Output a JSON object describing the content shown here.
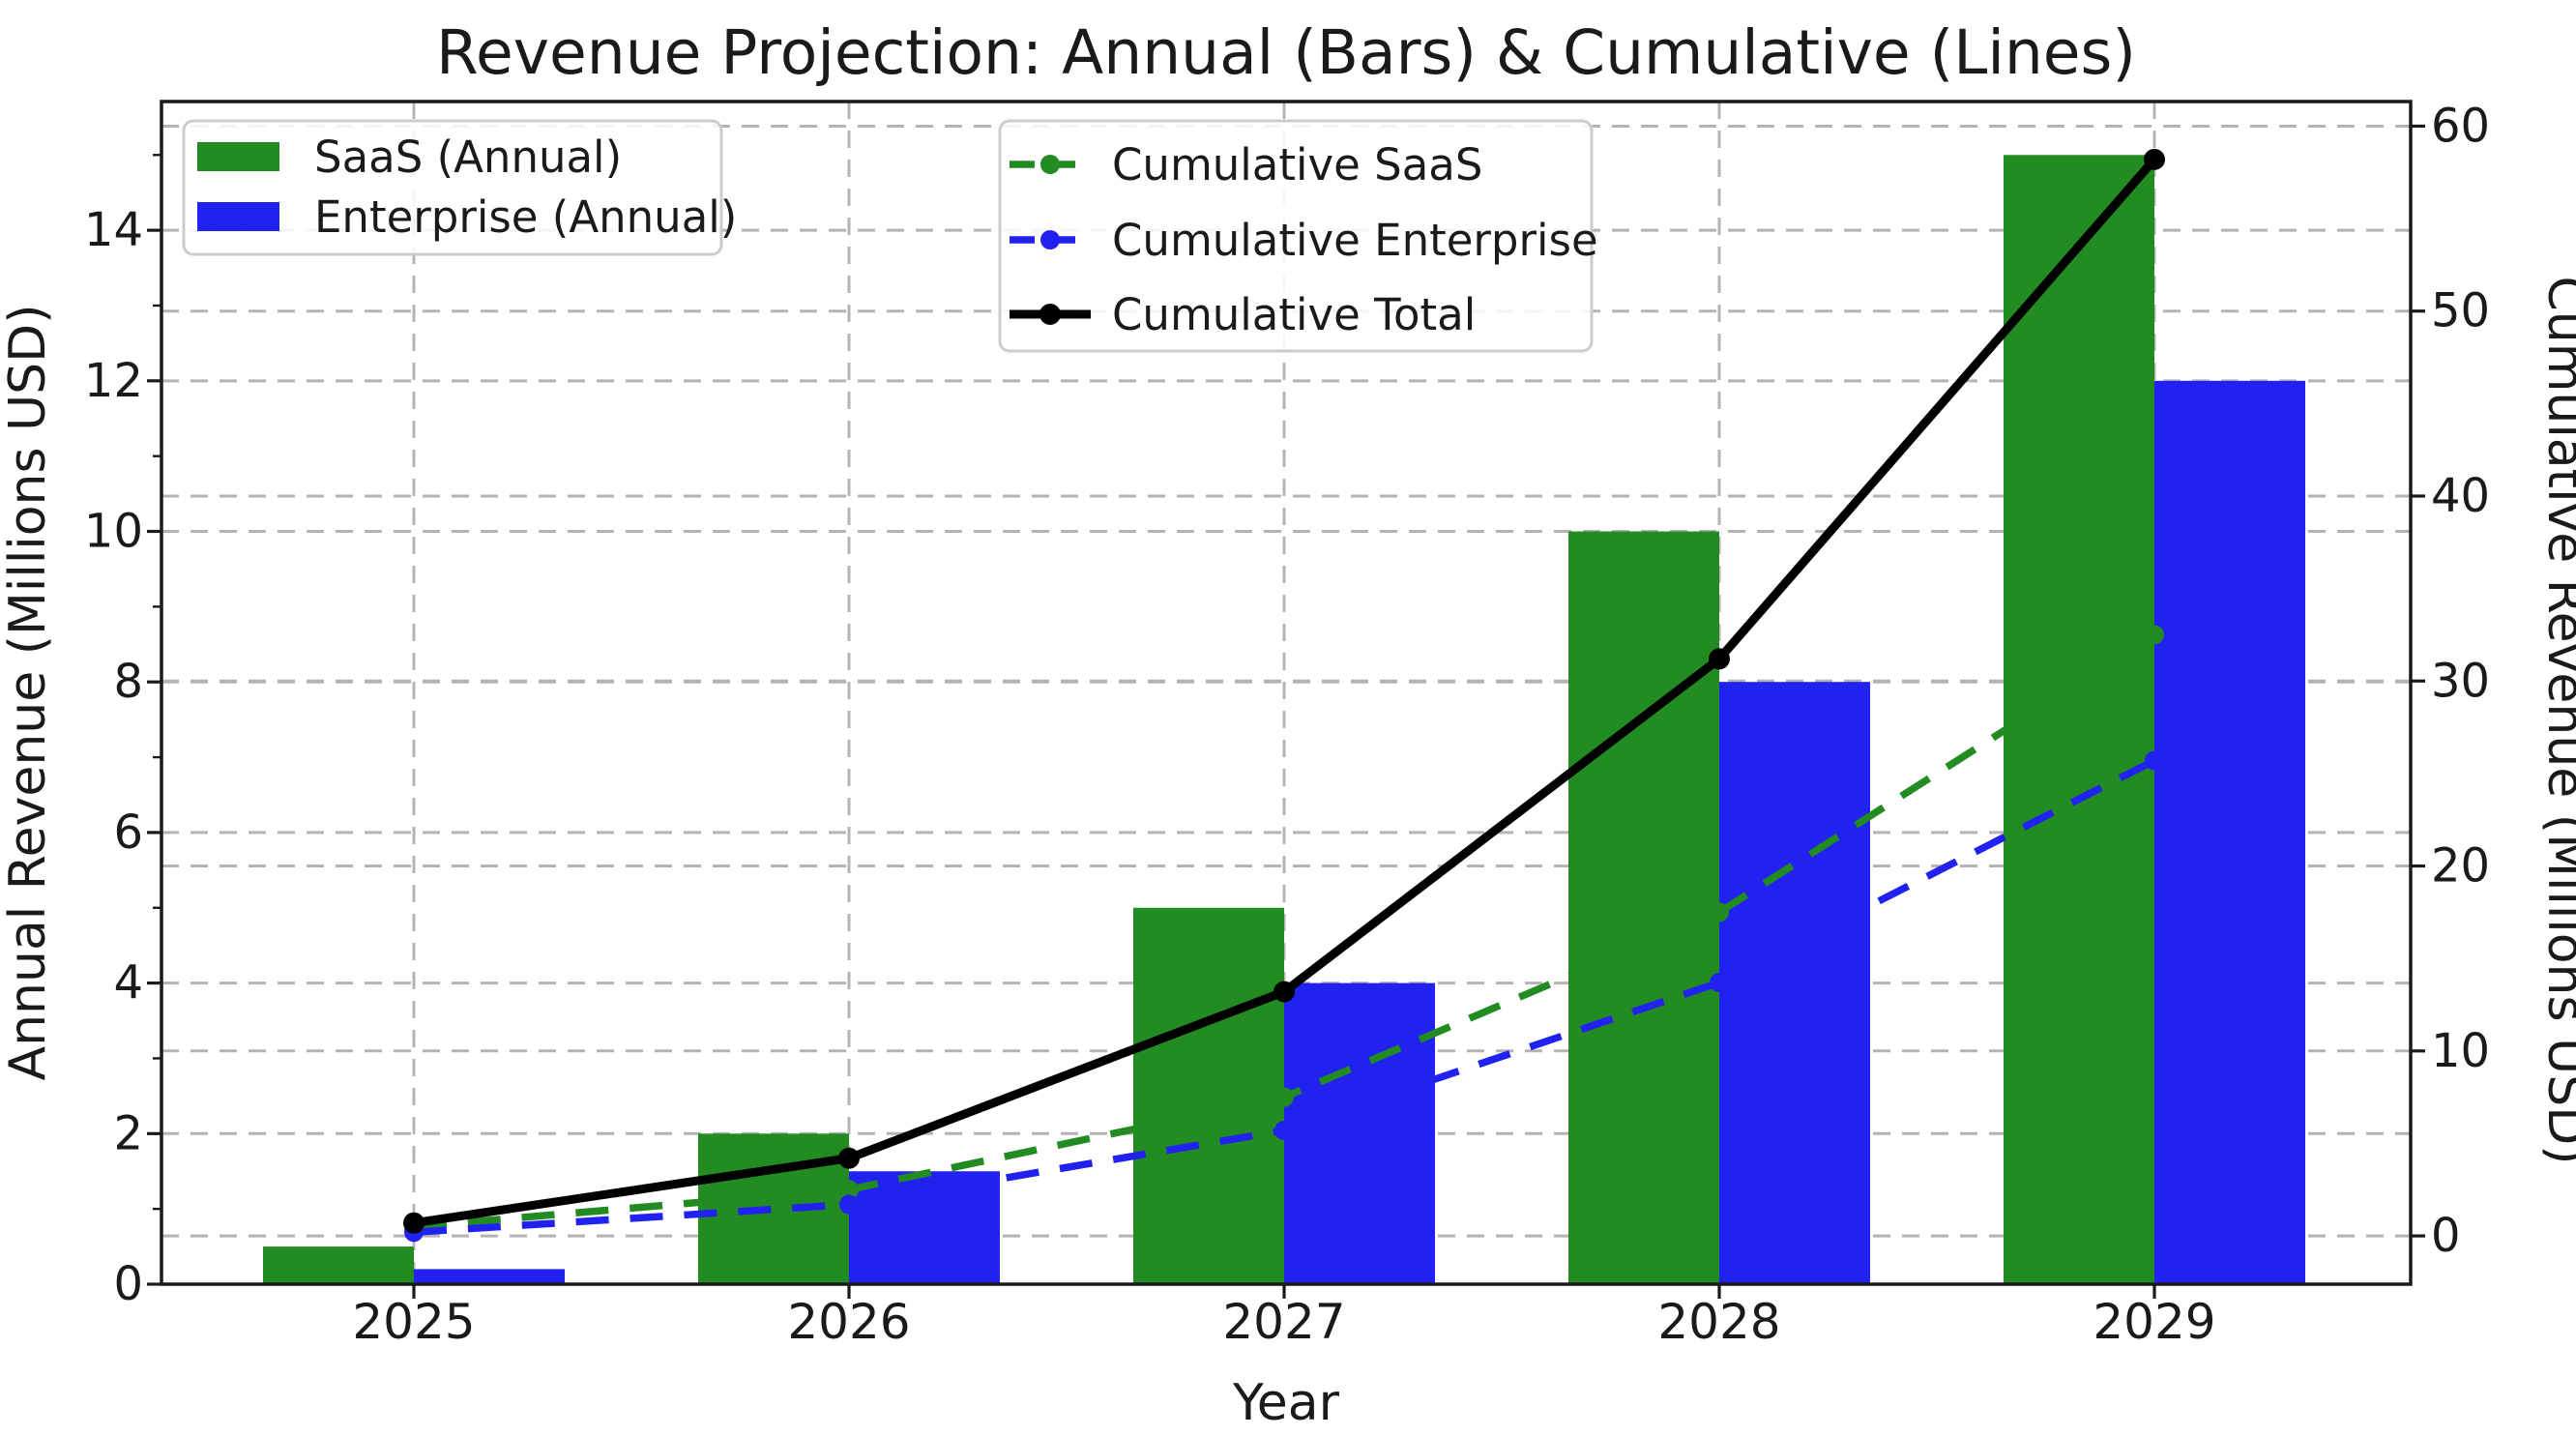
{
  "chart_data": {
    "type": "bar+line",
    "title": "Revenue Projection: Annual (Bars) & Cumulative (Lines)",
    "xlabel": "Year",
    "ylabel_left": "Annual Revenue (Millions USD)",
    "ylabel_right": "Cumulative Revenue (Millions USD)",
    "categories": [
      "2025",
      "2026",
      "2027",
      "2028",
      "2029"
    ],
    "grid": true,
    "legend_position": "upper left (bars) and upper center (lines)",
    "left_axis": {
      "ticks": [
        0,
        2,
        4,
        6,
        8,
        10,
        12,
        14
      ],
      "ylim": [
        0,
        15.71
      ]
    },
    "right_axis": {
      "ticks": [
        0,
        10,
        20,
        30,
        40,
        50,
        60
      ],
      "ylim": [
        -2.61,
        61.33
      ]
    },
    "bar_series": [
      {
        "name": "SaaS (Annual)",
        "color": "#228B22",
        "values": [
          0.5,
          2.0,
          5.0,
          10.0,
          15.0
        ]
      },
      {
        "name": "Enterprise (Annual)",
        "color": "#2222f0",
        "values": [
          0.2,
          1.5,
          4.0,
          8.0,
          12.0
        ]
      }
    ],
    "line_series": [
      {
        "name": "Cumulative SaaS",
        "color": "#228B22",
        "style": "dashed",
        "values": [
          0.5,
          2.5,
          7.5,
          17.5,
          32.5
        ]
      },
      {
        "name": "Cumulative Enterprise",
        "color": "#2222f0",
        "style": "dashed",
        "values": [
          0.2,
          1.7,
          5.7,
          13.7,
          25.7
        ]
      },
      {
        "name": "Cumulative Total",
        "color": "#000000",
        "style": "solid",
        "values": [
          0.7,
          4.2,
          13.2,
          31.2,
          58.2
        ]
      }
    ],
    "colors": {
      "grid": "#b4b4b4",
      "spine": "#1a1a1a",
      "text": "#1a1a1a",
      "legend_border": "#cccccc",
      "background": "#ffffff"
    }
  }
}
